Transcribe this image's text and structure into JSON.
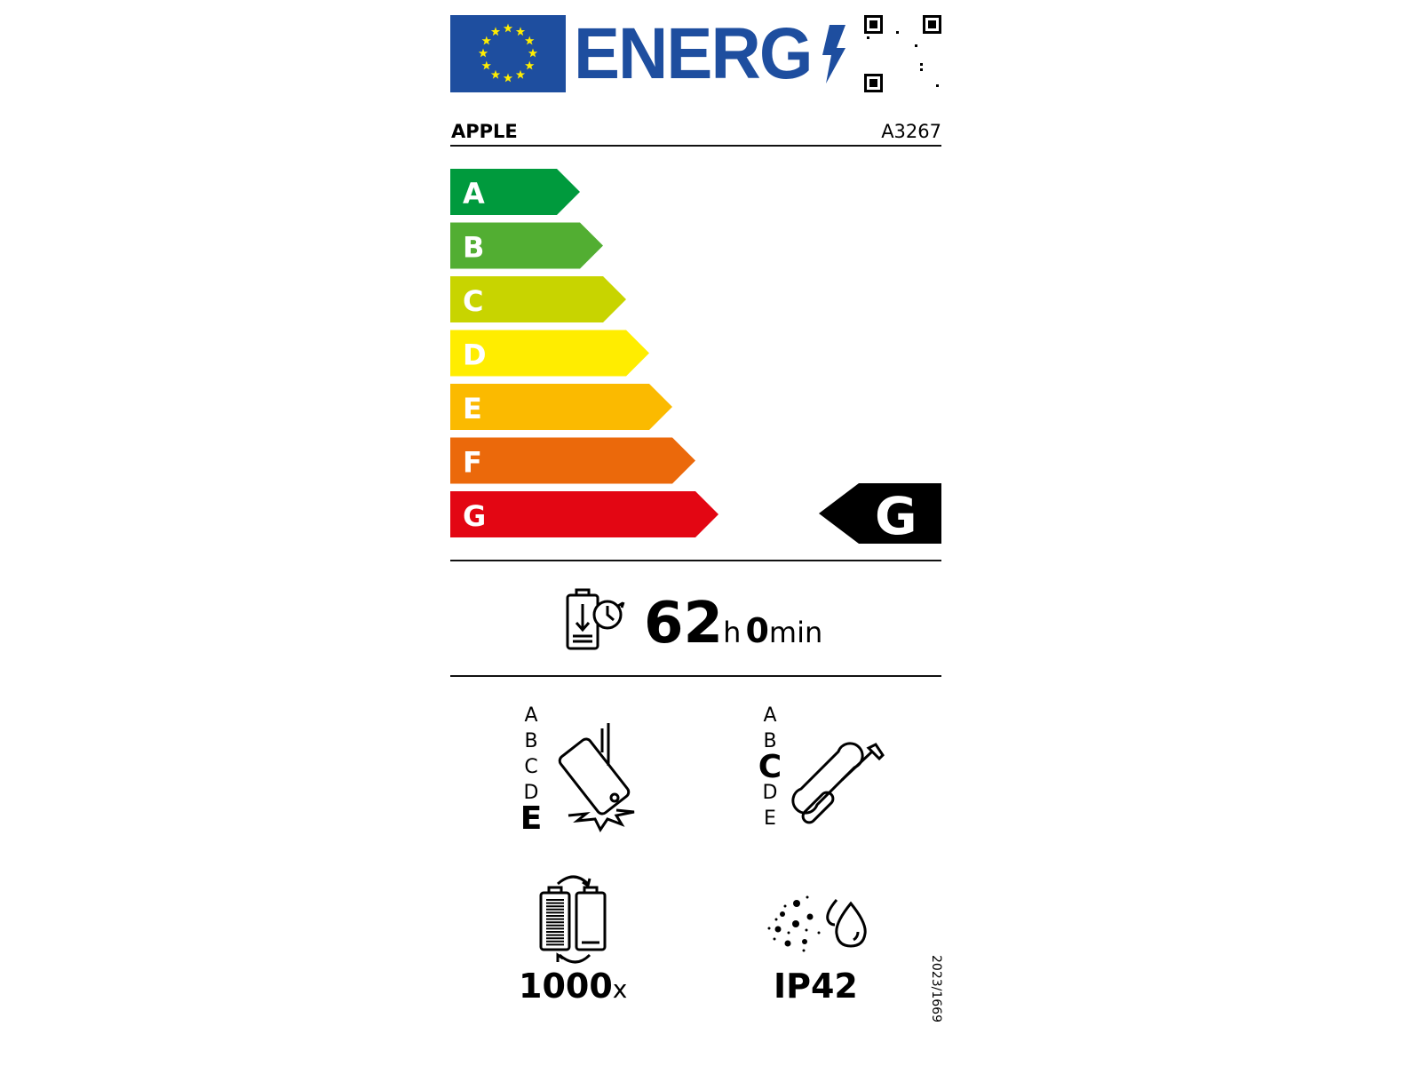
{
  "header": {
    "logo_text": "ENERG",
    "brand": "APPLE",
    "model": "A3267",
    "flag_icon": "eu-flag-icon",
    "qr_icon": "qr-code-icon"
  },
  "scale": {
    "classes": [
      {
        "letter": "A",
        "color": "#009a3d"
      },
      {
        "letter": "B",
        "color": "#52ae32"
      },
      {
        "letter": "C",
        "color": "#c8d400"
      },
      {
        "letter": "D",
        "color": "#ffed00"
      },
      {
        "letter": "E",
        "color": "#fbba00"
      },
      {
        "letter": "F",
        "color": "#eb690b"
      },
      {
        "letter": "G",
        "color": "#e30613"
      }
    ],
    "rating": "G"
  },
  "battery_endurance": {
    "hours": "62",
    "hours_unit": "h",
    "minutes": "0",
    "minutes_unit": "min",
    "icon": "battery-endurance-icon"
  },
  "drop_resistance": {
    "classes": [
      "A",
      "B",
      "C",
      "D",
      "E"
    ],
    "selected": "E",
    "icon": "phone-drop-icon"
  },
  "repairability": {
    "classes": [
      "A",
      "B",
      "C",
      "D",
      "E"
    ],
    "selected": "C",
    "icon": "wrench-screwdriver-icon"
  },
  "battery_cycles": {
    "value": "1000",
    "unit": "x",
    "icon": "battery-cycles-icon"
  },
  "ingress_protection": {
    "value": "IP42",
    "icon": "dust-water-icon"
  },
  "regulation": "2023/1669"
}
